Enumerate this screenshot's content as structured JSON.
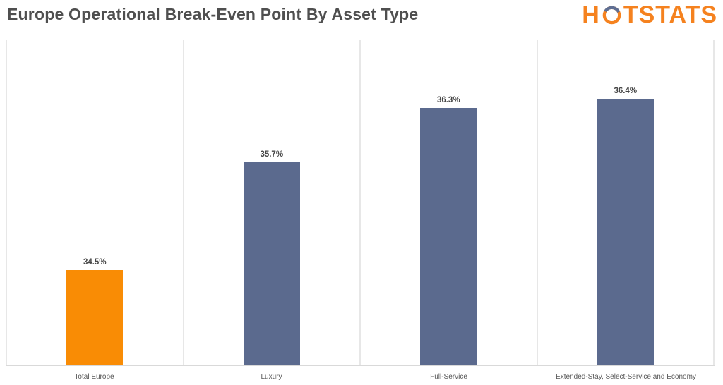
{
  "header": {
    "title": "Europe Operational Break-Even Point By Asset Type",
    "logo": {
      "text_before_o": "H",
      "text_after_o": "TSTATS",
      "full_name": "HOTSTATS"
    }
  },
  "colors": {
    "bar_accent": "#F98C05",
    "bar_default": "#5B6A8E",
    "logo_orange": "#F5821F",
    "logo_slate": "#5F6F93",
    "gridline": "#e7e7e7",
    "axis_line": "#d9d9d9",
    "title_text": "#4f4f4f"
  },
  "chart_data": {
    "type": "bar",
    "title": "Europe Operational Break-Even Point By Asset Type",
    "categories": [
      "Total Europe",
      "Luxury",
      "Full-Service",
      "Extended-Stay, Select-Service and Economy"
    ],
    "values": [
      34.5,
      35.7,
      36.3,
      36.4
    ],
    "value_labels": [
      "34.5%",
      "35.7%",
      "36.3%",
      "36.4%"
    ],
    "unit": "percent",
    "xlabel": "",
    "ylabel": "",
    "ylim": [
      33.45,
      37.05
    ],
    "y_axis_visible": false,
    "grid": "vertical panel dividers only",
    "legend_position": "none",
    "bar_colors": [
      "#F98C05",
      "#5B6A8E",
      "#5B6A8E",
      "#5B6A8E"
    ]
  }
}
